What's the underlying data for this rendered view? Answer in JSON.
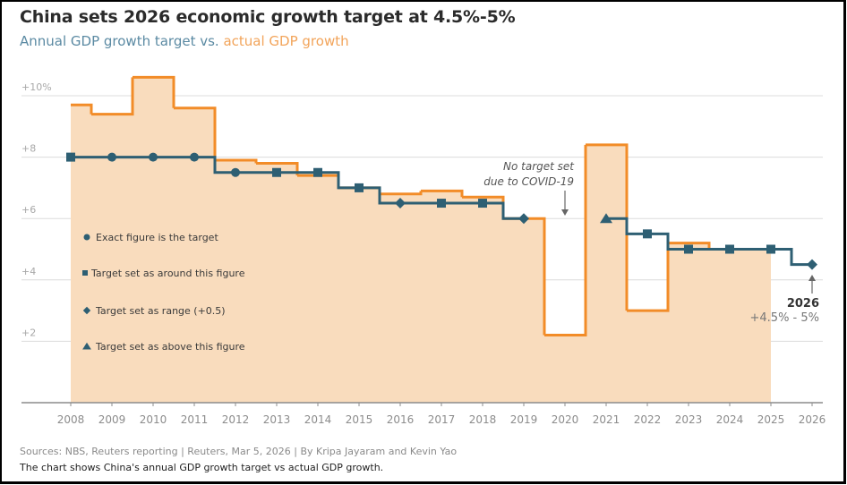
{
  "header": {
    "title": "China sets 2026 economic growth target at 4.5%-5%",
    "subtitle_target": "Annual GDP growth target",
    "subtitle_vs": " vs. ",
    "subtitle_actual": "actual GDP growth"
  },
  "footer": {
    "source": "Sources: NBS, Reuters reporting | Reuters, Mar 5, 2026 | By Kripa Jayaram and Kevin Yao",
    "description": "The chart shows China's annual GDP growth target vs actual GDP growth."
  },
  "colors": {
    "target_line": "#2e5f73",
    "actual_line": "#f28c28",
    "actual_fill": "#f9dcbd",
    "grid": "#dcdcdc",
    "axis": "#8c8c8c"
  },
  "chart_data": {
    "type": "line",
    "title": "China sets 2026 economic growth target at 4.5%-5%",
    "subtitle": "Annual GDP growth target vs. actual GDP growth",
    "xlabel": "",
    "ylabel": "",
    "ylim": [
      0,
      10
    ],
    "xlim": [
      2008,
      2026
    ],
    "grid": true,
    "y_ticks": [
      {
        "value": 2,
        "label": "+2"
      },
      {
        "value": 4,
        "label": "+4"
      },
      {
        "value": 6,
        "label": "+6"
      },
      {
        "value": 8,
        "label": "+8"
      },
      {
        "value": 10,
        "label": "+10%"
      }
    ],
    "x_ticks": [
      "2008",
      "2009",
      "2010",
      "2011",
      "2012",
      "2013",
      "2014",
      "2015",
      "2016",
      "2017",
      "2018",
      "2019",
      "2020",
      "2021",
      "2022",
      "2023",
      "2024",
      "2025",
      "2026"
    ],
    "series": [
      {
        "name": "Actual GDP growth",
        "style": "step-area",
        "points": [
          {
            "x": 2008,
            "y": 9.7
          },
          {
            "x": 2009,
            "y": 9.4
          },
          {
            "x": 2010,
            "y": 10.6
          },
          {
            "x": 2011,
            "y": 9.6
          },
          {
            "x": 2012,
            "y": 7.9
          },
          {
            "x": 2013,
            "y": 7.8
          },
          {
            "x": 2014,
            "y": 7.4
          },
          {
            "x": 2015,
            "y": 7.0
          },
          {
            "x": 2016,
            "y": 6.8
          },
          {
            "x": 2017,
            "y": 6.9
          },
          {
            "x": 2018,
            "y": 6.7
          },
          {
            "x": 2019,
            "y": 6.0
          },
          {
            "x": 2020,
            "y": 2.2
          },
          {
            "x": 2021,
            "y": 8.4
          },
          {
            "x": 2022,
            "y": 3.0
          },
          {
            "x": 2023,
            "y": 5.2
          },
          {
            "x": 2024,
            "y": 5.0
          },
          {
            "x": 2025,
            "y": 5.0
          }
        ]
      },
      {
        "name": "GDP growth target",
        "style": "step-line",
        "points": [
          {
            "x": 2008,
            "y": 8.0,
            "marker": "square"
          },
          {
            "x": 2009,
            "y": 8.0,
            "marker": "circle"
          },
          {
            "x": 2010,
            "y": 8.0,
            "marker": "circle"
          },
          {
            "x": 2011,
            "y": 8.0,
            "marker": "circle"
          },
          {
            "x": 2012,
            "y": 7.5,
            "marker": "circle"
          },
          {
            "x": 2013,
            "y": 7.5,
            "marker": "square"
          },
          {
            "x": 2014,
            "y": 7.5,
            "marker": "square"
          },
          {
            "x": 2015,
            "y": 7.0,
            "marker": "square"
          },
          {
            "x": 2016,
            "y": 6.5,
            "marker": "diamond"
          },
          {
            "x": 2017,
            "y": 6.5,
            "marker": "square"
          },
          {
            "x": 2018,
            "y": 6.5,
            "marker": "square"
          },
          {
            "x": 2019,
            "y": 6.0,
            "marker": "diamond"
          },
          {
            "x": 2020,
            "y": null,
            "marker": "none"
          },
          {
            "x": 2021,
            "y": 6.0,
            "marker": "triangle"
          },
          {
            "x": 2022,
            "y": 5.5,
            "marker": "square"
          },
          {
            "x": 2023,
            "y": 5.0,
            "marker": "square"
          },
          {
            "x": 2024,
            "y": 5.0,
            "marker": "square"
          },
          {
            "x": 2025,
            "y": 5.0,
            "marker": "square"
          },
          {
            "x": 2026,
            "y": 4.5,
            "marker": "diamond"
          }
        ]
      }
    ],
    "legend": {
      "placement": "left-inside",
      "items": [
        {
          "marker": "circle",
          "label": "Exact figure is the target"
        },
        {
          "marker": "square",
          "label": "Target set as around this figure"
        },
        {
          "marker": "diamond",
          "label": "Target set as range (+0.5)"
        },
        {
          "marker": "triangle",
          "label": "Target set as above this figure"
        }
      ]
    },
    "annotations": [
      {
        "x": 2020,
        "lines": [
          "No target set",
          "due to COVID-19"
        ],
        "arrow": "down"
      },
      {
        "x": 2026,
        "year": "2026",
        "range": "+4.5% - 5%",
        "arrow": "up"
      }
    ]
  }
}
